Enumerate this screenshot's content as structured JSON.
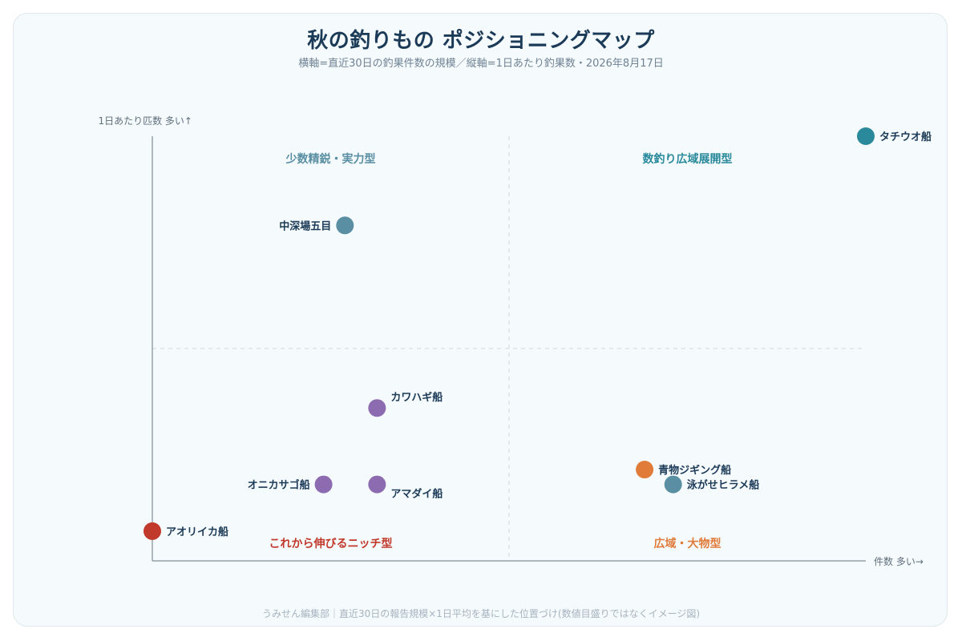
{
  "header": {
    "title": "秋の釣りもの ポジショニングマップ",
    "subtitle": "横軸=直近30日の釣果件数の規模／縦軸=1日あたり釣果数・2026年8月17日"
  },
  "footer": {
    "note": "うみせん編集部｜直近30日の報告規模×1日平均を基にした位置づけ(数値目盛りではなくイメージ図)"
  },
  "chart_data": {
    "type": "scatter",
    "title": "秋の釣りもの ポジショニングマップ",
    "subtitle": "横軸=直近30日の釣果件数の規模／縦軸=1日あたり釣果数・2026年8月17日",
    "xlabel": "件数 多い→",
    "ylabel": "1日あたり匹数 多い↑",
    "xlim": [
      0,
      100
    ],
    "ylim": [
      0,
      100
    ],
    "grid": false,
    "quadrant_divider": {
      "x": 50,
      "y": 50
    },
    "quadrants": [
      {
        "label": "少数精鋭・実力型",
        "position": "top-left",
        "color": "#5a8fa3"
      },
      {
        "label": "数釣り広域展開型",
        "position": "top-right",
        "color": "#2a8a9c"
      },
      {
        "label": "これから伸びるニッチ型",
        "position": "bottom-left",
        "color": "#c0392b"
      },
      {
        "label": "広域・大物型",
        "position": "bottom-right",
        "color": "#e07b39"
      }
    ],
    "points": [
      {
        "name": "タチウオ船",
        "x": 100,
        "y": 100,
        "color": "#2a8a9c",
        "label_side": "right"
      },
      {
        "name": "中深場五目",
        "x": 27,
        "y": 79,
        "color": "#5a8fa3",
        "label_side": "left"
      },
      {
        "name": "カワハギ船",
        "x": 31.5,
        "y": 36,
        "color": "#8c6bb1",
        "label_side": "upper-right"
      },
      {
        "name": "オニカサゴ船",
        "x": 24,
        "y": 18,
        "color": "#8c6bb1",
        "label_side": "left"
      },
      {
        "name": "アマダイ船",
        "x": 31.5,
        "y": 18,
        "color": "#8c6bb1",
        "label_side": "lower-right"
      },
      {
        "name": "アオリイカ船",
        "x": 0,
        "y": 7,
        "color": "#c0392b",
        "label_side": "right"
      },
      {
        "name": "青物ジギング船",
        "x": 69,
        "y": 21.5,
        "color": "#e07b39",
        "label_side": "right"
      },
      {
        "name": "泳がせヒラメ船",
        "x": 73,
        "y": 18,
        "color": "#5a8fa3",
        "label_side": "right"
      }
    ]
  }
}
